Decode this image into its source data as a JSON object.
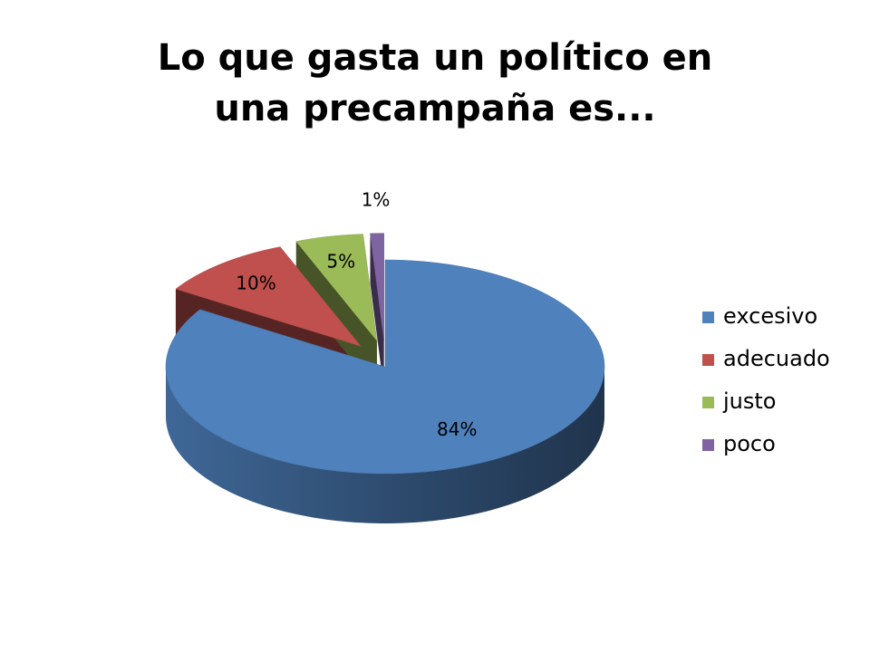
{
  "chart_data": {
    "type": "pie",
    "title": "Lo que gasta un político en una precampaña es...",
    "categories": [
      "excesivo",
      "adecuado",
      "justo",
      "poco"
    ],
    "values": [
      84,
      10,
      5,
      1
    ],
    "value_labels": [
      "84%",
      "10%",
      "5%",
      "1%"
    ],
    "colors": [
      "#4f81bd",
      "#c0504d",
      "#9bbb59",
      "#8064a2"
    ],
    "legend": "right"
  }
}
